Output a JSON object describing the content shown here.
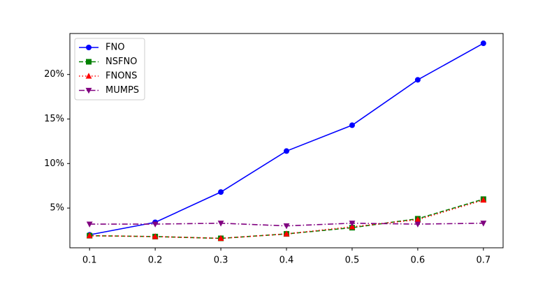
{
  "chart_data": {
    "type": "line",
    "x": [
      0.1,
      0.2,
      0.3,
      0.4,
      0.5,
      0.6,
      0.7
    ],
    "series": [
      {
        "name": "FNO",
        "color": "#0000ff",
        "linestyle": "solid",
        "marker": "circle",
        "values": [
          2.0,
          3.4,
          6.8,
          11.4,
          14.3,
          19.4,
          23.5
        ]
      },
      {
        "name": "NSFNO",
        "color": "#008000",
        "linestyle": "dashed",
        "marker": "square",
        "values": [
          1.9,
          1.8,
          1.6,
          2.1,
          2.8,
          3.8,
          6.0
        ]
      },
      {
        "name": "FNONS",
        "color": "#ff0000",
        "linestyle": "dotted",
        "marker": "triangle-up",
        "values": [
          1.9,
          1.8,
          1.6,
          2.1,
          2.9,
          3.7,
          5.9
        ]
      },
      {
        "name": "MUMPS",
        "color": "#800080",
        "linestyle": "dashdot",
        "marker": "triangle-down",
        "values": [
          3.2,
          3.2,
          3.3,
          3.0,
          3.3,
          3.2,
          3.3
        ]
      }
    ],
    "xlim": [
      0.07,
      0.73
    ],
    "xticks": [
      0.1,
      0.2,
      0.3,
      0.4,
      0.5,
      0.6,
      0.7
    ],
    "ylim": [
      0.54,
      24.6
    ],
    "yticks": [
      {
        "value": 5,
        "label": "5%"
      },
      {
        "value": 10,
        "label": "10%"
      },
      {
        "value": 15,
        "label": "15%"
      },
      {
        "value": 20,
        "label": "20%"
      }
    ],
    "legend": "upper left"
  }
}
